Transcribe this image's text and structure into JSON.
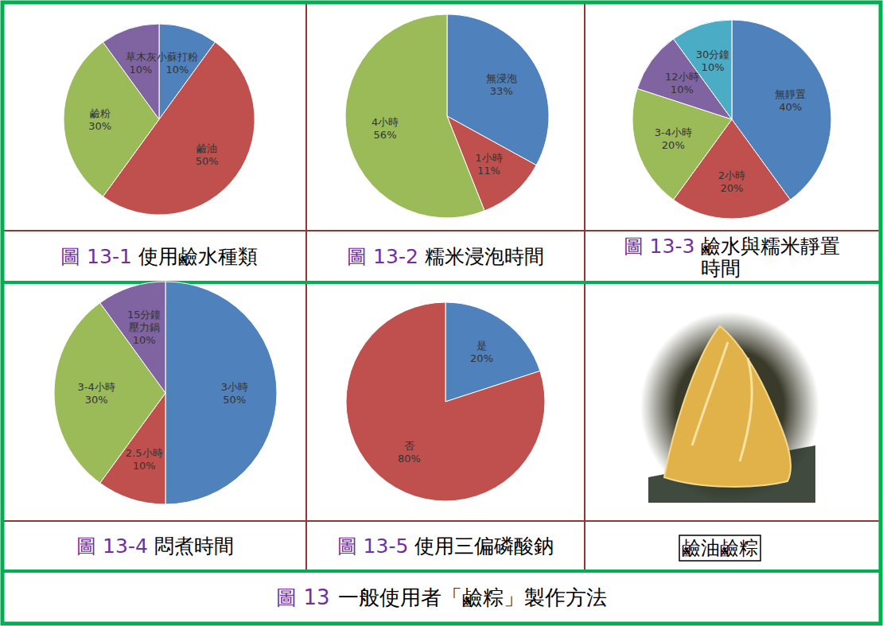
{
  "chart_data": [
    {
      "type": "pie",
      "figure_label": "圖 13-1",
      "title": "使用鹼水種類",
      "categories": [
        "小蘇打粉",
        "鹼油",
        "鹼粉",
        "草木灰"
      ],
      "values": [
        10,
        50,
        30,
        10
      ],
      "value_labels": [
        "10%",
        "50%",
        "30%",
        "10%"
      ],
      "colors": [
        "#4f81bd",
        "#c0504d",
        "#9bbb59",
        "#8064a2"
      ],
      "data_labels": true
    },
    {
      "type": "pie",
      "figure_label": "圖 13-2",
      "title": "糯米浸泡時間",
      "categories": [
        "無浸泡",
        "1小時",
        "4小時"
      ],
      "values": [
        33,
        11,
        56
      ],
      "value_labels": [
        "33%",
        "11%",
        "56%"
      ],
      "colors": [
        "#4f81bd",
        "#c0504d",
        "#9bbb59"
      ],
      "data_labels": true
    },
    {
      "type": "pie",
      "figure_label": "圖 13-3",
      "title": "鹼水與糯米靜置\n時間",
      "categories": [
        "無靜置",
        "2小時",
        "3-4小時",
        "12小時",
        "30分鐘"
      ],
      "values": [
        40,
        20,
        20,
        10,
        10
      ],
      "value_labels": [
        "40%",
        "20%",
        "20%",
        "10%",
        "10%"
      ],
      "colors": [
        "#4f81bd",
        "#c0504d",
        "#9bbb59",
        "#8064a2",
        "#4bacc6"
      ],
      "data_labels": true
    },
    {
      "type": "pie",
      "figure_label": "圖 13-4",
      "title": "悶煮時間",
      "categories": [
        "3小時",
        "2.5小時",
        "3-4小時",
        "15分鐘\n壓力鍋"
      ],
      "values": [
        50,
        10,
        30,
        10
      ],
      "value_labels": [
        "50%",
        "10%",
        "30%",
        "10%"
      ],
      "colors": [
        "#4f81bd",
        "#c0504d",
        "#9bbb59",
        "#8064a2"
      ],
      "data_labels": true
    },
    {
      "type": "pie",
      "figure_label": "圖 13-5",
      "title": "使用三偏磷酸鈉",
      "categories": [
        "是",
        "否"
      ],
      "values": [
        20,
        80
      ],
      "value_labels": [
        "20%",
        "80%"
      ],
      "colors": [
        "#4f81bd",
        "#c0504d"
      ],
      "data_labels": true
    }
  ],
  "figure": {
    "label": "圖 13",
    "title": "一般使用者「鹼粽」製作方法"
  },
  "photo": {
    "caption": "鹼油鹼粽"
  }
}
